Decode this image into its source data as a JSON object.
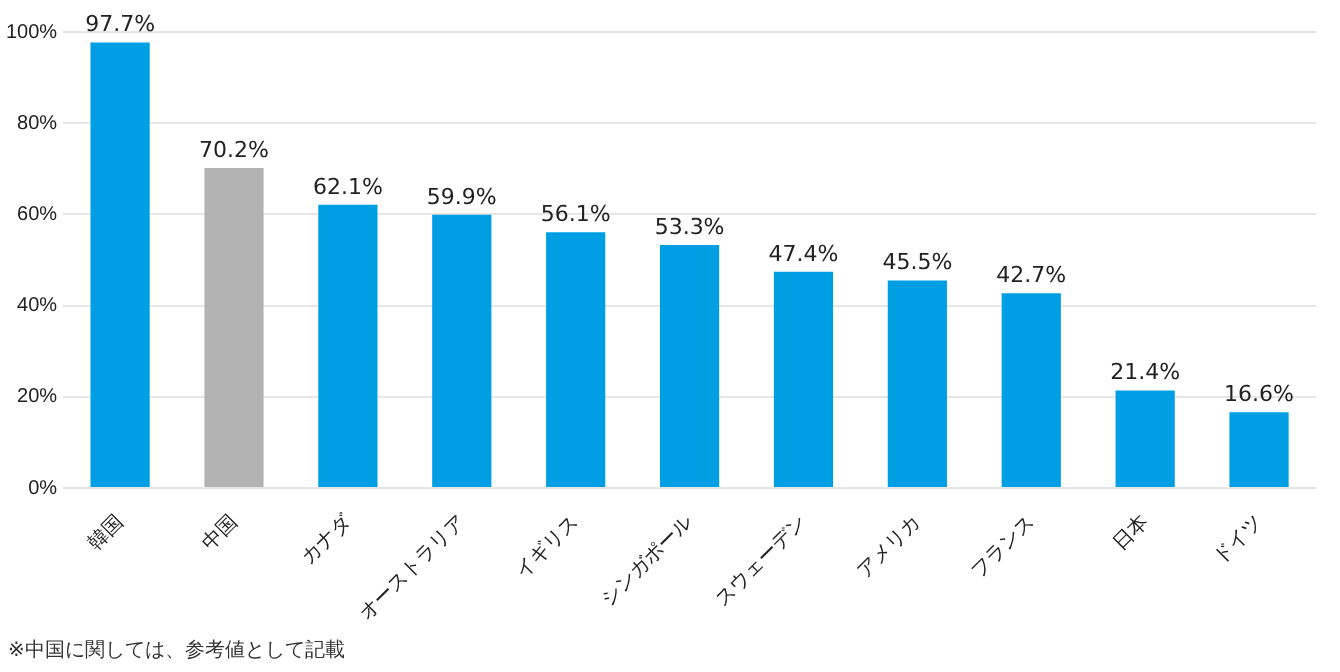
{
  "chart_data": {
    "type": "bar",
    "categories": [
      "韓国",
      "中国",
      "カナダ",
      "オーストラリア",
      "イギリス",
      "シンガポール",
      "スウェーデン",
      "アメリカ",
      "フランス",
      "日本",
      "ドイツ"
    ],
    "values": [
      97.7,
      70.2,
      62.1,
      59.9,
      56.1,
      53.3,
      47.4,
      45.5,
      42.7,
      21.4,
      16.6
    ],
    "colors": [
      "#009fe3",
      "#b3b3b3",
      "#009fe3",
      "#009fe3",
      "#009fe3",
      "#009fe3",
      "#009fe3",
      "#009fe3",
      "#009fe3",
      "#009fe3",
      "#009fe3"
    ],
    "value_labels": [
      "97.7%",
      "70.2%",
      "62.1%",
      "59.9%",
      "56.1%",
      "53.3%",
      "47.4%",
      "45.5%",
      "42.7%",
      "21.4%",
      "16.6%"
    ],
    "ylim": [
      0,
      100
    ],
    "yticks": [
      {
        "value": 0,
        "label": "0%"
      },
      {
        "value": 20,
        "label": "20%"
      },
      {
        "value": 40,
        "label": "40%"
      },
      {
        "value": 60,
        "label": "60%"
      },
      {
        "value": 80,
        "label": "80%"
      },
      {
        "value": 100,
        "label": "100%"
      }
    ],
    "grid": "y",
    "legend": false,
    "annotations": [
      "※中国に関しては、参考値として記載"
    ]
  }
}
